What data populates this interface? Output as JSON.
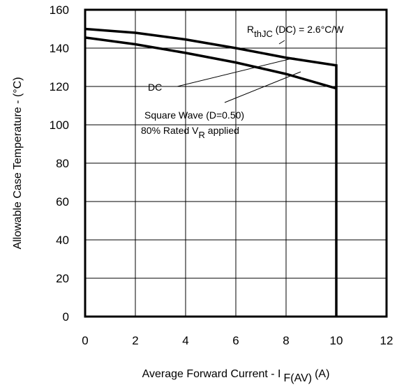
{
  "chart_data": {
    "type": "line",
    "xlabel": {
      "main": "Average Forward Current - I",
      "sub": "F(AV)",
      "unit": "(A)"
    },
    "ylabel": "Allowable Case Temperature - (°C)",
    "xlim": [
      0,
      12
    ],
    "ylim": [
      0,
      160
    ],
    "x_ticks": [
      "0",
      "2",
      "4",
      "6",
      "8",
      "10",
      "12"
    ],
    "y_ticks": [
      "0",
      "20",
      "40",
      "60",
      "80",
      "100",
      "120",
      "140",
      "160"
    ],
    "grid": true,
    "series": [
      {
        "name": "DC",
        "x": [
          0,
          2,
          4,
          6,
          8,
          10,
          10
        ],
        "y": [
          150,
          148,
          144.5,
          140,
          135,
          131,
          0
        ]
      },
      {
        "name": "Square Wave (D=0.50)",
        "x": [
          0,
          2,
          4,
          6,
          8,
          10
        ],
        "y": [
          145.5,
          142,
          137.5,
          132.5,
          126.5,
          119
        ]
      }
    ],
    "annotations": {
      "rth": {
        "main": "R",
        "sub": "thJC",
        "rest": " (DC) = 2.6°C/W"
      },
      "dc": "DC",
      "square_line1": "Square Wave (D=0.50)",
      "square_line2_pre": "80% Rated V",
      "square_line2_sub": "R",
      "square_line2_post": " applied"
    }
  }
}
